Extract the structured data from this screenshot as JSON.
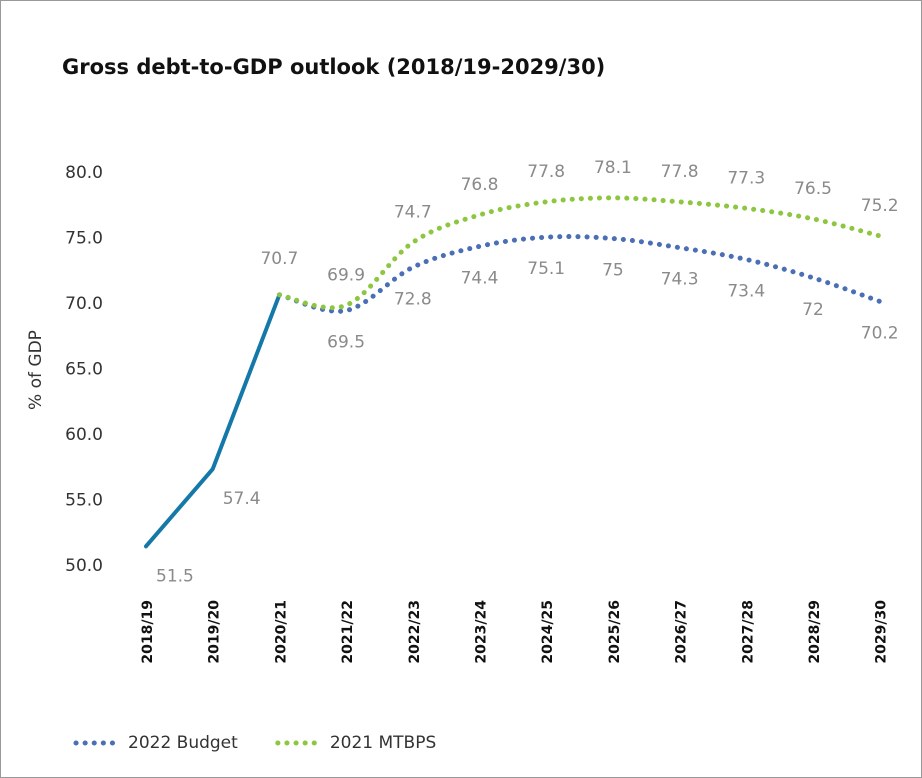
{
  "chart_data": {
    "type": "line",
    "title": "Gross debt-to-GDP outlook (2018/19-2029/30)",
    "y_label": "% of GDP",
    "categories": [
      "2018/19",
      "2019/20",
      "2020/21",
      "2021/22",
      "2022/23",
      "2023/24",
      "2024/25",
      "2025/26",
      "2026/27",
      "2027/28",
      "2028/29",
      "2029/30"
    ],
    "series": [
      {
        "color": "#1478a8",
        "style": "solid",
        "values": [
          51.5,
          57.4,
          70.7,
          null,
          null,
          null,
          null,
          null,
          null,
          null,
          null,
          null
        ]
      },
      {
        "name": "2022 Budget",
        "color": "#4a6fb5",
        "style": "dotted",
        "values": [
          null,
          null,
          70.7,
          69.5,
          72.8,
          74.4,
          75.1,
          75.0,
          74.3,
          73.4,
          72.0,
          70.2
        ]
      },
      {
        "name": "2021 MTBPS",
        "color": "#8dc63f",
        "style": "dotted",
        "values": [
          null,
          null,
          70.7,
          69.9,
          74.7,
          76.8,
          77.8,
          78.1,
          77.8,
          77.3,
          76.5,
          75.2
        ]
      }
    ],
    "ylim": [
      50,
      80
    ],
    "yticks": [
      {
        "value": 50,
        "label": "50.0"
      },
      {
        "value": 55,
        "label": "55.0"
      },
      {
        "value": 60,
        "label": "60.0"
      },
      {
        "value": 65,
        "label": "65.0"
      },
      {
        "value": 70,
        "label": "70.0"
      },
      {
        "value": 75,
        "label": "75.0"
      },
      {
        "value": 80,
        "label": "80.0"
      }
    ],
    "grid": false,
    "legend": "bottom-left"
  }
}
